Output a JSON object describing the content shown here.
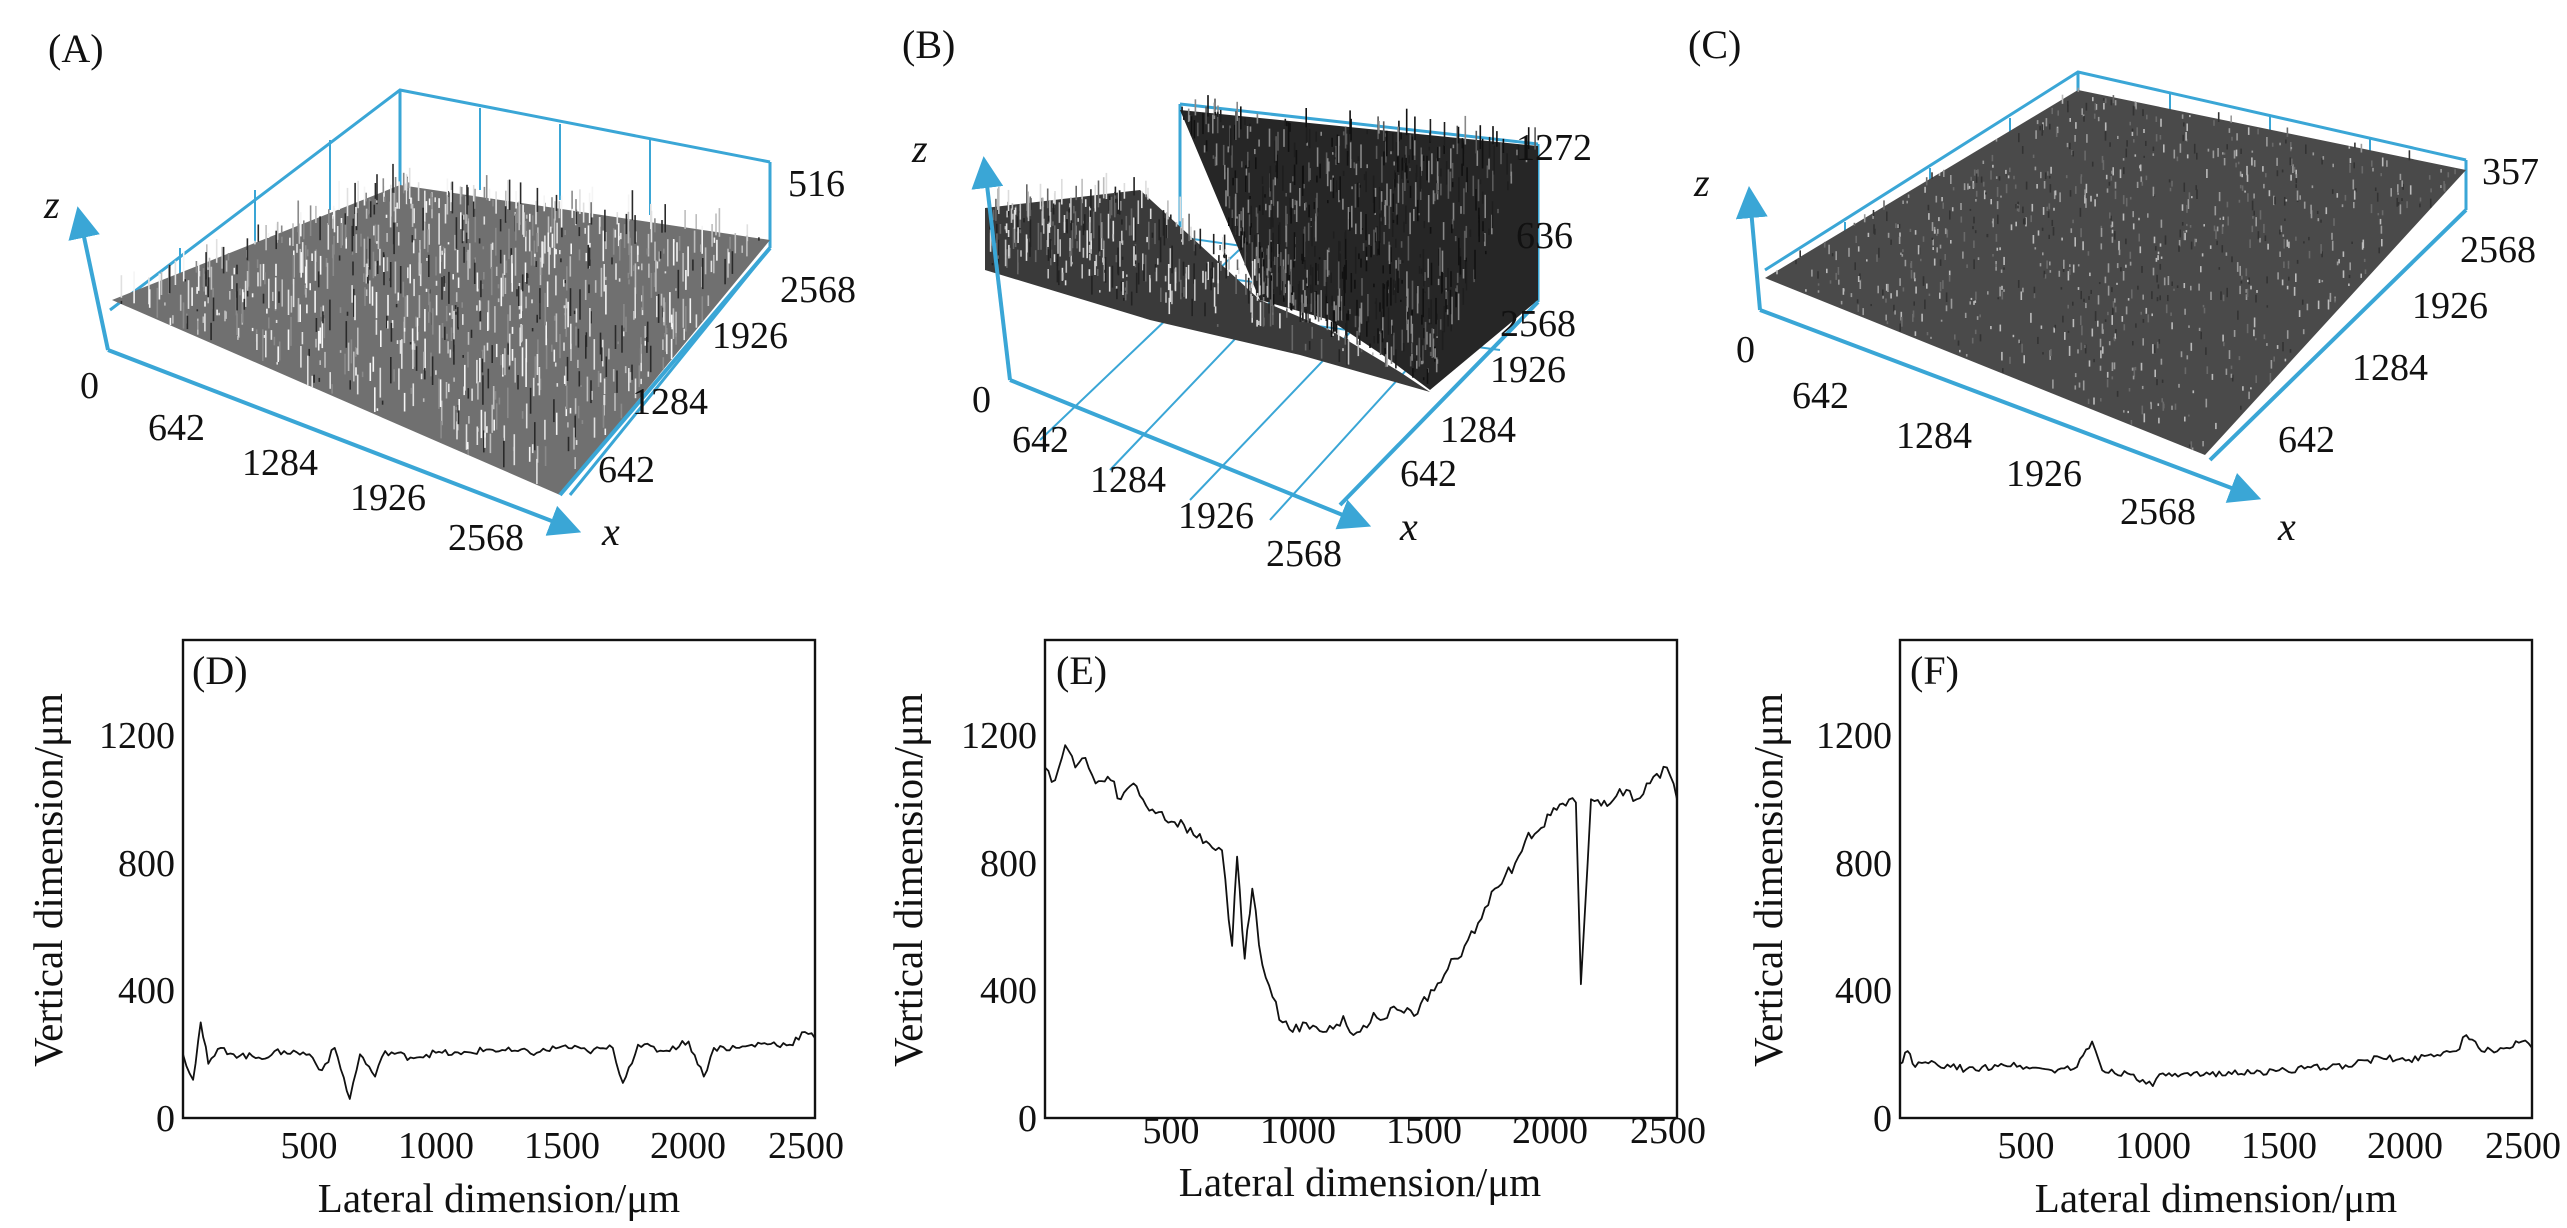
{
  "chart_data": [
    {
      "panel": "(A)",
      "type": "surface3d",
      "x_ticks": [
        "0",
        "642",
        "1284",
        "1926",
        "2568"
      ],
      "y_ticks": [
        "642",
        "1284",
        "1926",
        "2568"
      ],
      "z_ticks": [
        "516"
      ],
      "x_label": "x",
      "z_label": "z",
      "surface": "rough",
      "zmax": 516
    },
    {
      "panel": "(B)",
      "type": "surface3d",
      "x_ticks": [
        "0",
        "642",
        "1284",
        "1926",
        "2568"
      ],
      "y_ticks": [
        "642",
        "1284",
        "1926",
        "2568"
      ],
      "z_ticks": [
        "636",
        "1272"
      ],
      "x_label": "x",
      "z_label": "z",
      "surface": "groove",
      "zmax": 1272
    },
    {
      "panel": "(C)",
      "type": "surface3d",
      "x_ticks": [
        "0",
        "642",
        "1284",
        "1926",
        "2568"
      ],
      "y_ticks": [
        "642",
        "1284",
        "1926",
        "2568"
      ],
      "z_ticks": [
        "357"
      ],
      "x_label": "x",
      "z_label": "z",
      "surface": "smooth",
      "zmax": 357
    },
    {
      "panel": "(D)",
      "type": "line",
      "xlabel": "Lateral dimension/μm",
      "ylabel": "Vertical dimension/μm",
      "xlim": [
        0,
        2500
      ],
      "ylim": [
        0,
        1500
      ],
      "xticks": [
        500,
        1000,
        1500,
        2000,
        2500
      ],
      "yticks": [
        0,
        400,
        800,
        1200
      ],
      "x": [
        0,
        40,
        70,
        100,
        150,
        200,
        300,
        400,
        500,
        550,
        600,
        660,
        700,
        760,
        800,
        900,
        1000,
        1100,
        1200,
        1300,
        1400,
        1500,
        1600,
        1700,
        1740,
        1800,
        1900,
        2000,
        2060,
        2100,
        2200,
        2300,
        2400,
        2460,
        2500
      ],
      "y": [
        200,
        120,
        300,
        170,
        220,
        200,
        190,
        210,
        200,
        150,
        220,
        60,
        200,
        130,
        210,
        190,
        205,
        200,
        215,
        210,
        205,
        225,
        210,
        220,
        110,
        230,
        210,
        240,
        130,
        220,
        220,
        235,
        230,
        270,
        250
      ]
    },
    {
      "panel": "(E)",
      "type": "line",
      "xlabel": "Lateral dimension/μm",
      "ylabel": "Vertical dimension/μm",
      "xlim": [
        0,
        2500
      ],
      "ylim": [
        0,
        1500
      ],
      "xticks": [
        500,
        1000,
        1500,
        2000,
        2500
      ],
      "yticks": [
        0,
        400,
        800,
        1200
      ],
      "x": [
        0,
        40,
        80,
        120,
        160,
        200,
        260,
        300,
        350,
        400,
        450,
        500,
        550,
        600,
        650,
        700,
        740,
        760,
        790,
        820,
        860,
        900,
        940,
        980,
        1020,
        1060,
        1100,
        1140,
        1180,
        1220,
        1260,
        1300,
        1340,
        1380,
        1420,
        1460,
        1500,
        1540,
        1580,
        1620,
        1660,
        1700,
        1740,
        1780,
        1820,
        1860,
        1900,
        1950,
        2000,
        2060,
        2100,
        2120,
        2160,
        2200,
        2260,
        2300,
        2340,
        2380,
        2420,
        2460,
        2500
      ],
      "y": [
        1100,
        1060,
        1170,
        1100,
        1130,
        1050,
        1060,
        1000,
        1050,
        980,
        960,
        930,
        920,
        880,
        860,
        840,
        540,
        820,
        500,
        720,
        480,
        380,
        300,
        270,
        300,
        290,
        270,
        280,
        320,
        260,
        290,
        330,
        310,
        350,
        330,
        320,
        380,
        400,
        450,
        500,
        540,
        580,
        660,
        720,
        760,
        800,
        870,
        900,
        950,
        980,
        990,
        420,
        1000,
        980,
        1010,
        1030,
        1000,
        1050,
        1080,
        1100,
        1000
      ]
    },
    {
      "panel": "(F)",
      "type": "line",
      "xlabel": "Lateral dimension/μm",
      "ylabel": "Vertical dimension/μm",
      "xlim": [
        0,
        2500
      ],
      "ylim": [
        0,
        1500
      ],
      "xticks": [
        500,
        1000,
        1500,
        2000,
        2500
      ],
      "yticks": [
        0,
        400,
        800,
        1200
      ],
      "x": [
        0,
        30,
        60,
        100,
        150,
        200,
        300,
        400,
        500,
        600,
        700,
        760,
        800,
        900,
        960,
        1000,
        1040,
        1100,
        1200,
        1300,
        1400,
        1500,
        1600,
        1700,
        1800,
        1900,
        2000,
        2100,
        2200,
        2240,
        2300,
        2400,
        2460,
        2500
      ],
      "y": [
        170,
        210,
        160,
        175,
        165,
        160,
        150,
        170,
        160,
        150,
        160,
        240,
        150,
        140,
        120,
        100,
        140,
        130,
        135,
        145,
        140,
        150,
        155,
        160,
        170,
        190,
        180,
        200,
        210,
        260,
        210,
        220,
        240,
        220
      ]
    }
  ]
}
